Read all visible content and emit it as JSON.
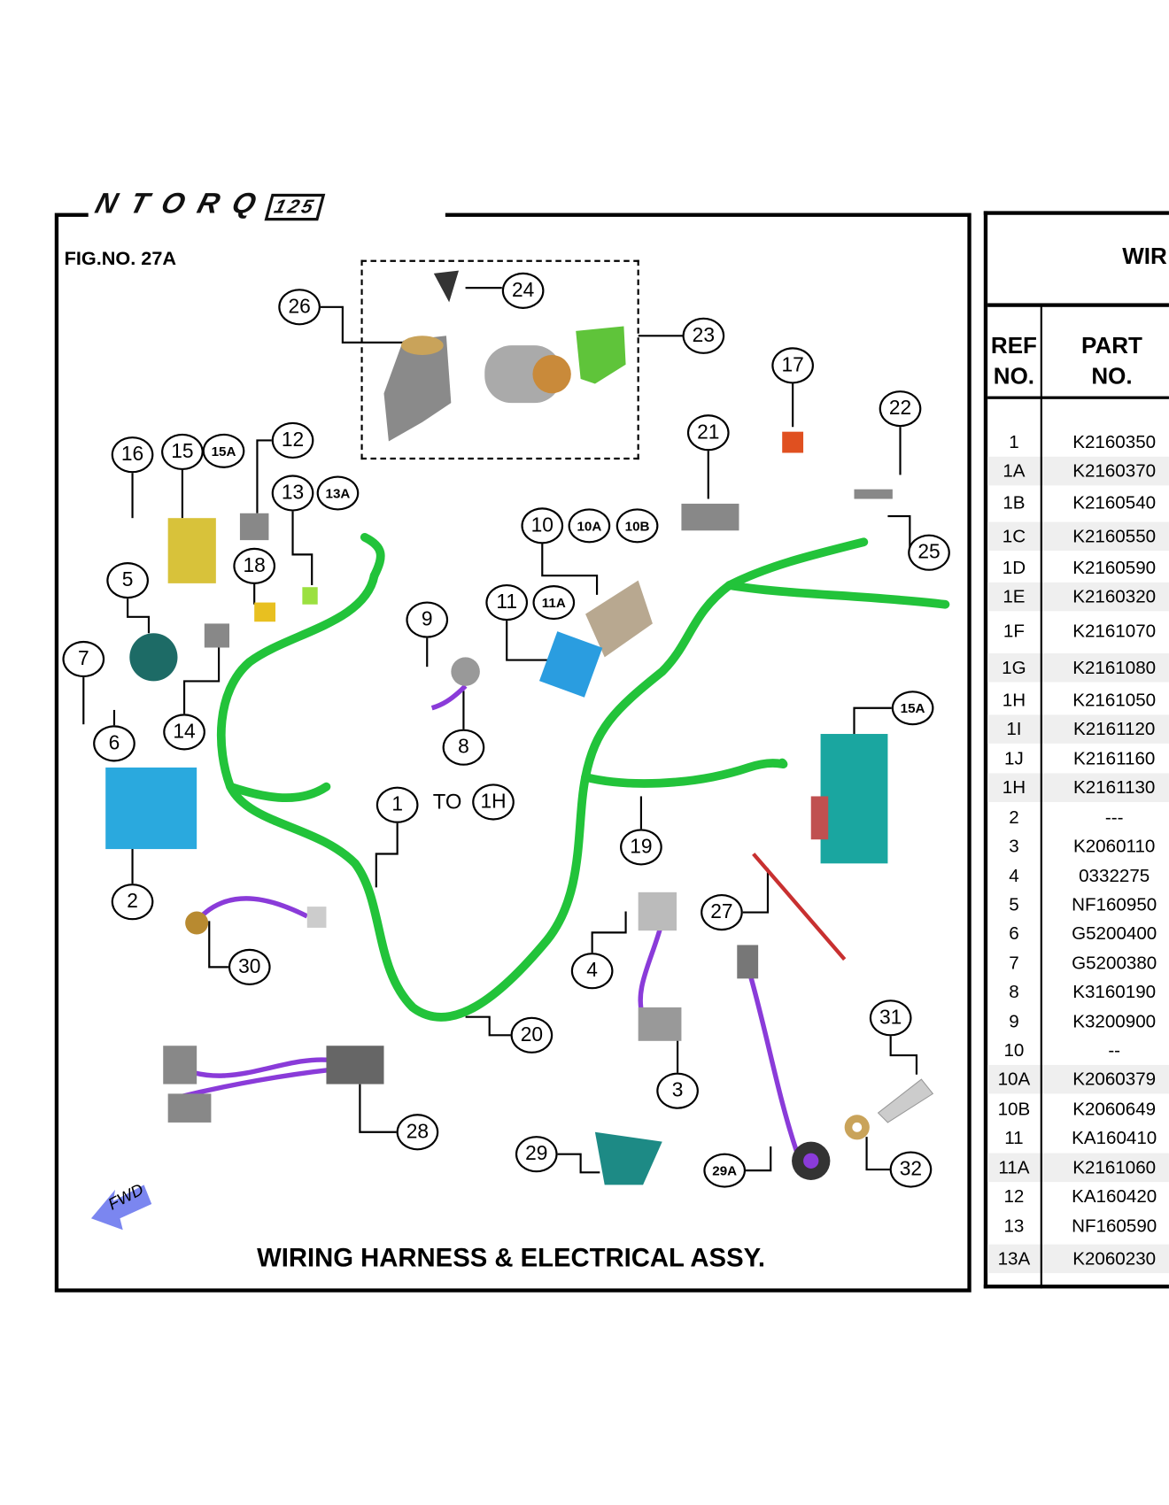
{
  "brand_logo": "NTORQ 125",
  "figure_number": "FIG.NO. 27A",
  "figure_title": "WIRING HARNESS & ELECTRICAL ASSY.",
  "direction_label": "FWD",
  "to_label": "TO",
  "colors": {
    "harness_green": "#22c33a",
    "wire_purple": "#8a3bd9",
    "battery_blue": "#2aa9de",
    "ecu_teal": "#1aa6a0",
    "fwd_arrow": "#7b86f0"
  },
  "callouts": [
    "26",
    "24",
    "23",
    "17",
    "22",
    "21",
    "25",
    "16",
    "15",
    "15A",
    "12",
    "13",
    "13A",
    "18",
    "5",
    "10",
    "10A",
    "10B",
    "11",
    "11A",
    "9",
    "7",
    "6",
    "14",
    "8",
    "15A",
    "1",
    "1H",
    "19",
    "2",
    "27",
    "30",
    "4",
    "20",
    "31",
    "3",
    "28",
    "29",
    "29A",
    "32"
  ],
  "table": {
    "title_partial": "WIR",
    "col_ref": [
      "REF",
      "NO."
    ],
    "col_part": [
      "PART",
      "NO."
    ],
    "rows": [
      {
        "ref": "1",
        "part": "K2160350"
      },
      {
        "ref": "1A",
        "part": "K2160370"
      },
      {
        "ref": "1B",
        "part": "K2160540"
      },
      {
        "ref": "1C",
        "part": "K2160550"
      },
      {
        "ref": "1D",
        "part": "K2160590"
      },
      {
        "ref": "1E",
        "part": "K2160320"
      },
      {
        "ref": "1F",
        "part": "K2161070"
      },
      {
        "ref": "1G",
        "part": "K2161080"
      },
      {
        "ref": "1H",
        "part": "K2161050"
      },
      {
        "ref": "1I",
        "part": "K2161120"
      },
      {
        "ref": "1J",
        "part": "K2161160"
      },
      {
        "ref": "1H",
        "part": "K2161130"
      },
      {
        "ref": "2",
        "part": "---"
      },
      {
        "ref": "3",
        "part": "K2060110"
      },
      {
        "ref": "4",
        "part": "0332275"
      },
      {
        "ref": "5",
        "part": "NF160950"
      },
      {
        "ref": "6",
        "part": "G5200400"
      },
      {
        "ref": "7",
        "part": "G5200380"
      },
      {
        "ref": "8",
        "part": "K3160190"
      },
      {
        "ref": "9",
        "part": "K3200900"
      },
      {
        "ref": "10",
        "part": "--"
      },
      {
        "ref": "10A",
        "part": "K2060379"
      },
      {
        "ref": "10B",
        "part": "K2060649"
      },
      {
        "ref": "11",
        "part": "KA160410"
      },
      {
        "ref": "11A",
        "part": "K2161060"
      },
      {
        "ref": "12",
        "part": "KA160420"
      },
      {
        "ref": "13",
        "part": "NF160590"
      },
      {
        "ref": "13A",
        "part": "K2060230"
      }
    ]
  }
}
